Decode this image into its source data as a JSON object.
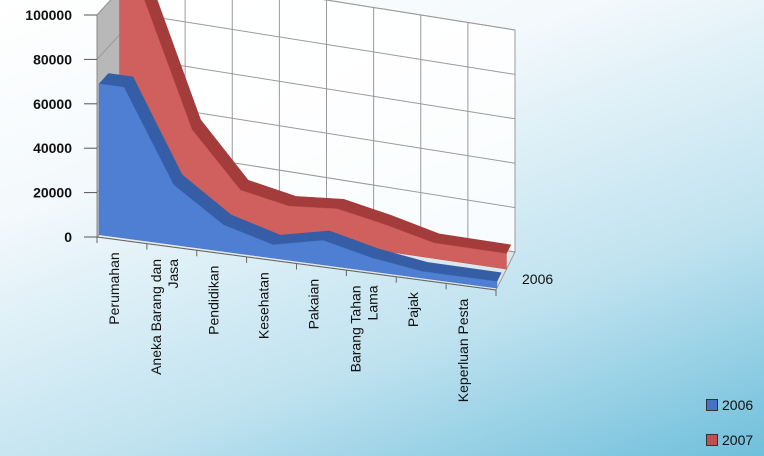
{
  "chart_data": {
    "type": "area",
    "title": "",
    "categories": [
      "Perumahan",
      "Aneka Barang dan Jasa",
      "Pendidikan",
      "Kesehatan",
      "Pakaian",
      "Barang Tahan Lama",
      "Pajak",
      "Keperluan Pesta"
    ],
    "category_lines": [
      [
        "Perumahan"
      ],
      [
        "Aneka Barang dan",
        "Jasa"
      ],
      [
        "Pendidikan"
      ],
      [
        "Kesehatan"
      ],
      [
        "Pakaian"
      ],
      [
        "Barang Tahan",
        "Lama"
      ],
      [
        "Pajak"
      ],
      [
        "Keperluan Pesta"
      ]
    ],
    "series": [
      {
        "name": "2006",
        "values": [
          68000,
          27000,
          12000,
          6000,
          11000,
          6000,
          3000,
          3000
        ],
        "color": "#4472c4"
      },
      {
        "name": "2007",
        "values": [
          98000,
          42000,
          18000,
          14000,
          16000,
          12000,
          7000,
          7000
        ],
        "color": "#c0504d"
      }
    ],
    "y_ticks": [
      "0",
      "20000",
      "40000",
      "60000",
      "80000",
      "100000"
    ],
    "ylim": [
      0,
      100000
    ],
    "depth_label": "2006",
    "legend_position": "bottom-right",
    "grid": true
  }
}
